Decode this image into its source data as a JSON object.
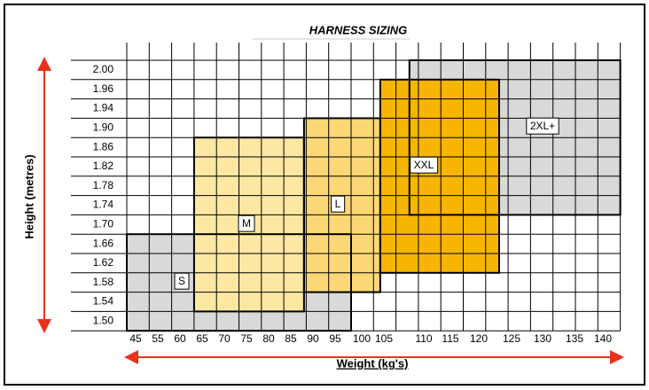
{
  "title": "HARNESS SIZING",
  "y_axis_label": "Height (metres)",
  "x_axis_label": "Weight (kg's)",
  "heights": [
    "2.00",
    "1.96",
    "1.94",
    "1.90",
    "1.86",
    "1.82",
    "1.78",
    "1.74",
    "1.70",
    "1.66",
    "1.62",
    "1.58",
    "1.54",
    "1.50"
  ],
  "weights": [
    "45",
    "55",
    "60",
    "65",
    "70",
    "75",
    "80",
    "85",
    "90",
    "95",
    "100",
    "105",
    "110",
    "115",
    "120",
    "125",
    "130",
    "135",
    "140"
  ],
  "zones": [
    {
      "label": "S"
    },
    {
      "label": "2XL+"
    },
    {
      "label": "XXL"
    },
    {
      "label": "L"
    },
    {
      "label": "M"
    }
  ]
}
